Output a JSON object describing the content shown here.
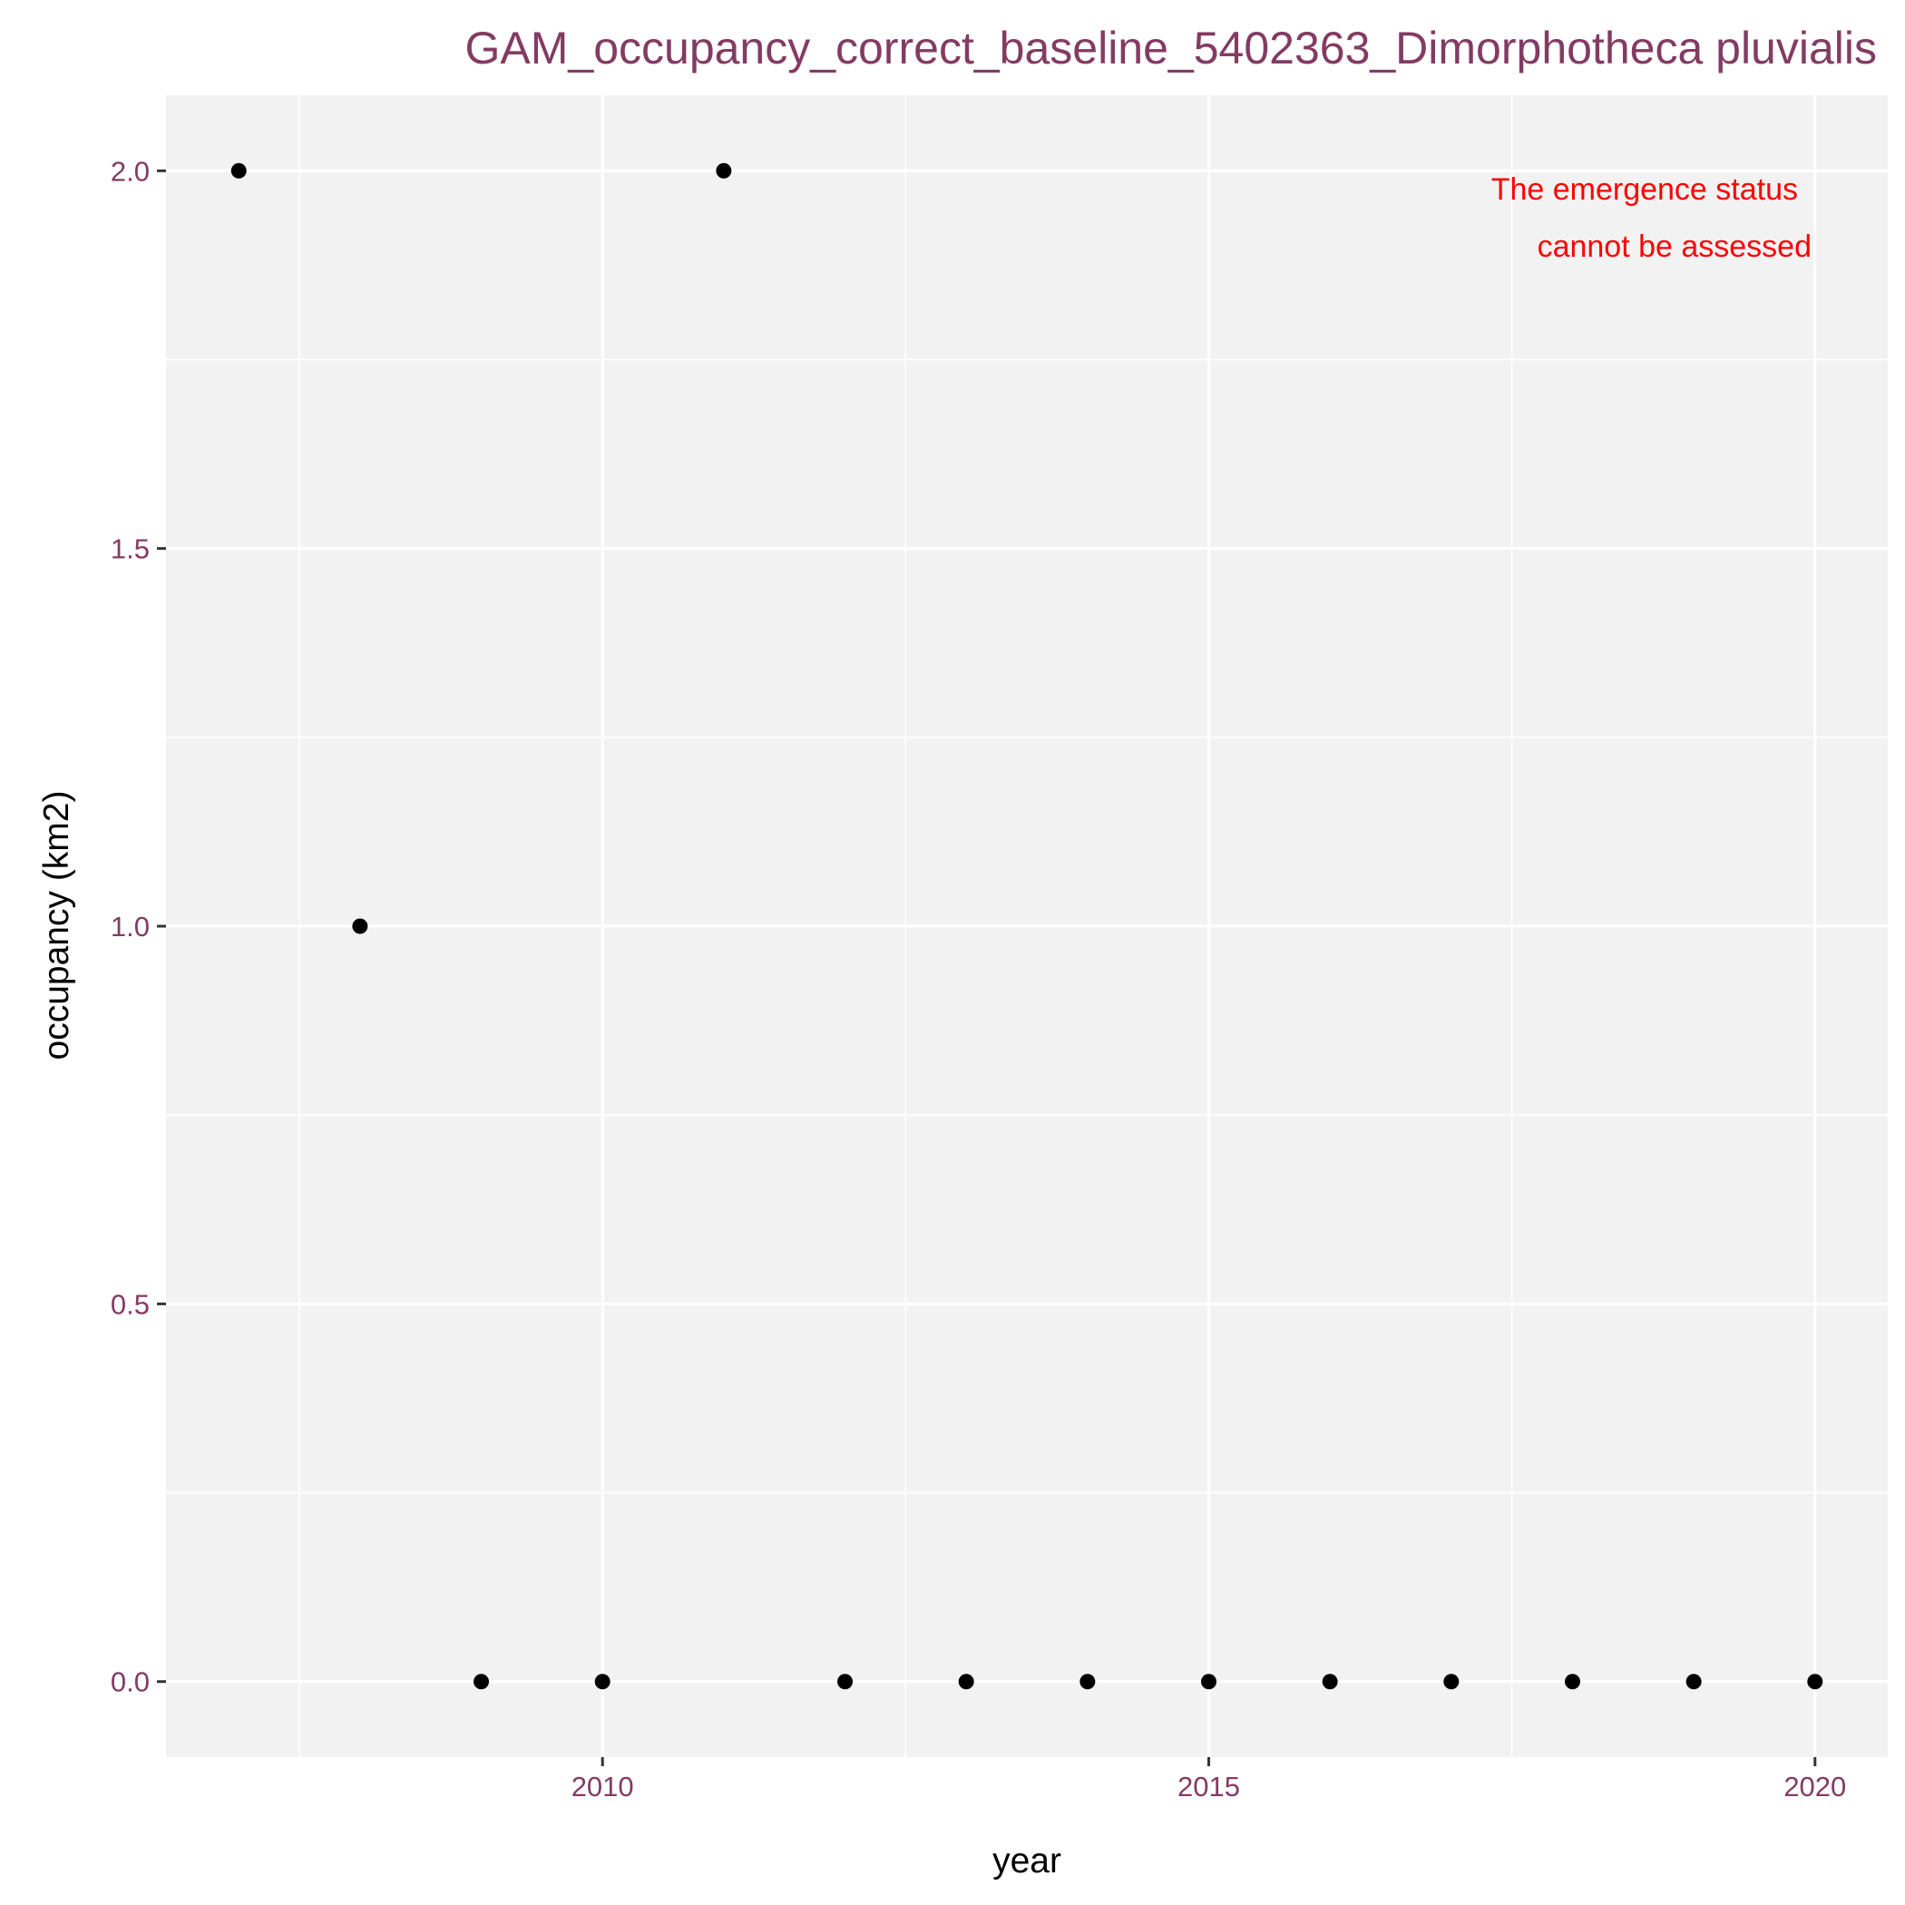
{
  "chart_data": {
    "type": "scatter",
    "title": "GAM_occupancy_correct_baseline_5402363_Dimorphotheca pluvialis",
    "xlabel": "year",
    "ylabel": "occupancy (km2)",
    "xlim": [
      2006.4,
      2020.6
    ],
    "ylim": [
      -0.1,
      2.1
    ],
    "x_ticks": [
      2010,
      2015,
      2020
    ],
    "x_tick_labels": [
      "2010",
      "2015",
      "2020"
    ],
    "y_ticks": [
      0,
      0.5,
      1,
      1.5,
      2
    ],
    "y_tick_labels": [
      "0.0",
      "0.5",
      "1.0",
      "1.5",
      "2.0"
    ],
    "x": [
      2007,
      2008,
      2009,
      2010,
      2011,
      2012,
      2013,
      2014,
      2015,
      2016,
      2017,
      2018,
      2019,
      2020
    ],
    "y": [
      2,
      1,
      0,
      0,
      2,
      0,
      0,
      0,
      0,
      0,
      0,
      0,
      0,
      0
    ],
    "annotation": [
      "The emergence status",
      "cannot be assessed"
    ],
    "grid": true,
    "colors": {
      "panel": "#f2f2f2",
      "grid": "#ffffff",
      "point": "#000000",
      "title": "#833b63",
      "tick_label": "#833b63",
      "annotation": "#ff0000"
    }
  }
}
